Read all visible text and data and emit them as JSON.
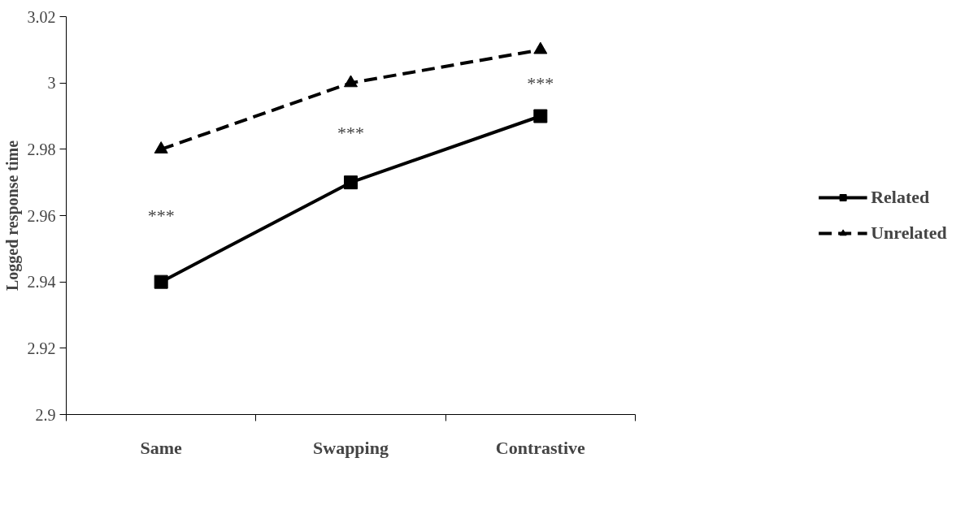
{
  "chart_data": {
    "type": "line",
    "ylabel": "Logged response time",
    "categories": [
      "Same",
      "Swapping",
      "Contrastive"
    ],
    "series": [
      {
        "name": "Related",
        "color": "#000000",
        "values": [
          2.94,
          2.97,
          2.99
        ],
        "marker": "square",
        "line_style": "solid"
      },
      {
        "name": "Unrelated",
        "color": "#000000",
        "values": [
          2.98,
          3.0,
          3.01
        ],
        "marker": "triangle",
        "line_style": "dashed"
      }
    ],
    "ylim": [
      2.9,
      3.02
    ],
    "yticks": [
      2.9,
      2.92,
      2.94,
      2.96,
      2.98,
      3,
      3.02
    ],
    "grid": false,
    "legend": "right",
    "annotations": [
      "***",
      "***",
      "***"
    ]
  }
}
